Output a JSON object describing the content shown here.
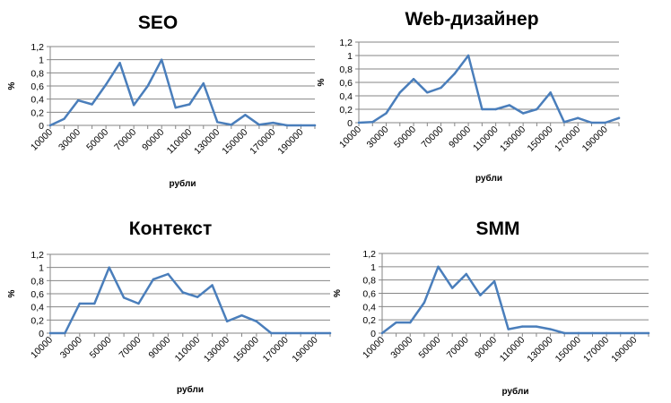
{
  "chart_data": [
    {
      "type": "line",
      "title": "SEO",
      "xlabel": "рубли",
      "ylabel": "%",
      "ylim": [
        0,
        1.2
      ],
      "yticks": [
        "0",
        "0,2",
        "0,4",
        "0,6",
        "0,8",
        "1",
        "1,2"
      ],
      "x": [
        10000,
        20000,
        30000,
        40000,
        50000,
        60000,
        70000,
        80000,
        90000,
        100000,
        110000,
        120000,
        130000,
        140000,
        150000,
        160000,
        170000,
        180000,
        190000,
        200000
      ],
      "xticks": [
        "10000",
        "30000",
        "50000",
        "70000",
        "90000",
        "110000",
        "130000",
        "150000",
        "170000",
        "190000"
      ],
      "grid": true,
      "series": [
        {
          "values": [
            0,
            0.1,
            0.38,
            0.32,
            0.62,
            0.95,
            0.31,
            0.6,
            1.0,
            0.27,
            0.32,
            0.64,
            0.05,
            0.01,
            0.16,
            0.01,
            0.04,
            0,
            0,
            0
          ]
        }
      ]
    },
    {
      "type": "line",
      "title": "Web-дизайнер",
      "xlabel": "рубли",
      "ylabel": "%",
      "ylim": [
        0,
        1.2
      ],
      "yticks": [
        "0",
        "0,2",
        "0,4",
        "0,6",
        "0,8",
        "1",
        "1,2"
      ],
      "x": [
        10000,
        20000,
        30000,
        40000,
        50000,
        60000,
        70000,
        80000,
        90000,
        100000,
        110000,
        120000,
        130000,
        140000,
        150000,
        160000,
        170000,
        180000,
        190000,
        200000
      ],
      "xticks": [
        "10000",
        "30000",
        "50000",
        "70000",
        "90000",
        "110000",
        "130000",
        "150000",
        "170000",
        "190000"
      ],
      "grid": true,
      "series": [
        {
          "values": [
            0,
            0.01,
            0.14,
            0.45,
            0.65,
            0.45,
            0.52,
            0.73,
            1.0,
            0.2,
            0.2,
            0.26,
            0.14,
            0.2,
            0.45,
            0.01,
            0.07,
            0,
            0,
            0.07
          ]
        }
      ]
    },
    {
      "type": "line",
      "title": "Контекст",
      "xlabel": "рубли",
      "ylabel": "%",
      "ylim": [
        0,
        1.2
      ],
      "yticks": [
        "0",
        "0,2",
        "0,4",
        "0,6",
        "0,8",
        "1",
        "1,2"
      ],
      "x": [
        10000,
        20000,
        30000,
        40000,
        50000,
        60000,
        70000,
        80000,
        90000,
        100000,
        110000,
        120000,
        130000,
        140000,
        150000,
        160000,
        170000,
        180000,
        190000,
        200000
      ],
      "xticks": [
        "10000",
        "30000",
        "50000",
        "70000",
        "90000",
        "110000",
        "130000",
        "150000",
        "170000",
        "190000"
      ],
      "grid": true,
      "series": [
        {
          "values": [
            0,
            0,
            0.45,
            0.45,
            1.0,
            0.54,
            0.45,
            0.82,
            0.9,
            0.62,
            0.55,
            0.73,
            0.18,
            0.27,
            0.18,
            0,
            0,
            0,
            0,
            0
          ]
        }
      ]
    },
    {
      "type": "line",
      "title": "SMM",
      "xlabel": "рубли",
      "ylabel": "%",
      "ylim": [
        0,
        1.2
      ],
      "yticks": [
        "0",
        "0,2",
        "0,4",
        "0,6",
        "0,8",
        "1",
        "1,2"
      ],
      "x": [
        10000,
        20000,
        30000,
        40000,
        50000,
        60000,
        70000,
        80000,
        90000,
        100000,
        110000,
        120000,
        130000,
        140000,
        150000,
        160000,
        170000,
        180000,
        190000,
        200000
      ],
      "xticks": [
        "10000",
        "30000",
        "50000",
        "70000",
        "90000",
        "110000",
        "130000",
        "150000",
        "170000",
        "190000"
      ],
      "grid": true,
      "series": [
        {
          "values": [
            0,
            0.16,
            0.16,
            0.46,
            1.0,
            0.68,
            0.89,
            0.57,
            0.78,
            0.06,
            0.1,
            0.1,
            0.06,
            0,
            0,
            0,
            0,
            0,
            0,
            0
          ]
        }
      ]
    }
  ],
  "colors": {
    "series": "#4a7ebb",
    "grid": "#868686"
  }
}
